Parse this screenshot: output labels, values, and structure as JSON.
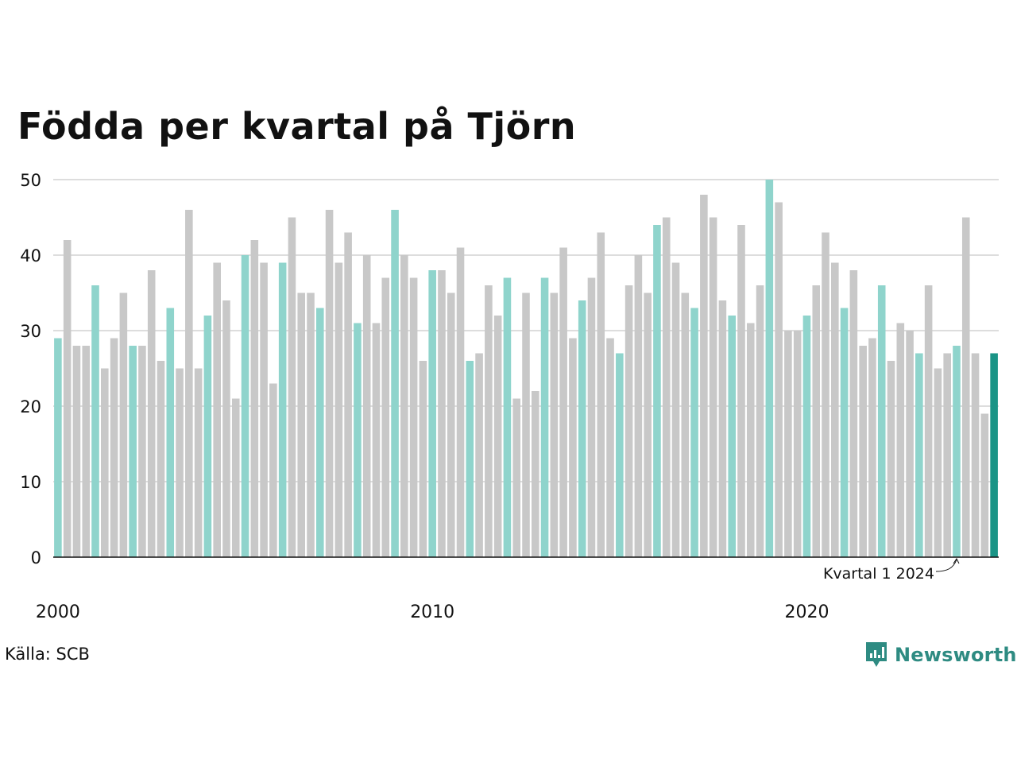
{
  "title": "Födda per kvartal på Tjörn",
  "source": "Källa: SCB",
  "brand": "Newsworthy",
  "colors": {
    "highlight": "#8fd4cc",
    "latest": "#1a9486",
    "other": "#c8c8c8",
    "grid": "#dddddd",
    "axis": "#111111",
    "brand": "#2e8b82"
  },
  "chart_data": {
    "type": "bar",
    "start_year": 2000,
    "ylim": [
      0,
      50
    ],
    "yticks": [
      0,
      10,
      20,
      30,
      40,
      50
    ],
    "xticks": [
      "2000",
      "2010",
      "2020"
    ],
    "grid": true,
    "annotation": "Kvartal 1 2024",
    "categories": [
      "2000 Q1",
      "2000 Q2",
      "2000 Q3",
      "2000 Q4",
      "2001 Q1",
      "2001 Q2",
      "2001 Q3",
      "2001 Q4",
      "2002 Q1",
      "2002 Q2",
      "2002 Q3",
      "2002 Q4",
      "2003 Q1",
      "2003 Q2",
      "2003 Q3",
      "2003 Q4",
      "2004 Q1",
      "2004 Q2",
      "2004 Q3",
      "2004 Q4",
      "2005 Q1",
      "2005 Q2",
      "2005 Q3",
      "2005 Q4",
      "2006 Q1",
      "2006 Q2",
      "2006 Q3",
      "2006 Q4",
      "2007 Q1",
      "2007 Q2",
      "2007 Q3",
      "2007 Q4",
      "2008 Q1",
      "2008 Q2",
      "2008 Q3",
      "2008 Q4",
      "2009 Q1",
      "2009 Q2",
      "2009 Q3",
      "2009 Q4",
      "2010 Q1",
      "2010 Q2",
      "2010 Q3",
      "2010 Q4",
      "2011 Q1",
      "2011 Q2",
      "2011 Q3",
      "2011 Q4",
      "2012 Q1",
      "2012 Q2",
      "2012 Q3",
      "2012 Q4",
      "2013 Q1",
      "2013 Q2",
      "2013 Q3",
      "2013 Q4",
      "2014 Q1",
      "2014 Q2",
      "2014 Q3",
      "2014 Q4",
      "2015 Q1",
      "2015 Q2",
      "2015 Q3",
      "2015 Q4",
      "2016 Q1",
      "2016 Q2",
      "2016 Q3",
      "2016 Q4",
      "2017 Q1",
      "2017 Q2",
      "2017 Q3",
      "2017 Q4",
      "2018 Q1",
      "2018 Q2",
      "2018 Q3",
      "2018 Q4",
      "2019 Q1",
      "2019 Q2",
      "2019 Q3",
      "2019 Q4",
      "2020 Q1",
      "2020 Q2",
      "2020 Q3",
      "2020 Q4",
      "2021 Q1",
      "2021 Q2",
      "2021 Q3",
      "2021 Q4",
      "2022 Q1",
      "2022 Q2",
      "2022 Q3",
      "2022 Q4",
      "2023 Q1",
      "2023 Q2",
      "2023 Q3",
      "2023 Q4",
      "2024 Q1",
      "2024 Q2",
      "2024 Q3",
      "2024 Q4",
      "2025 Q1"
    ],
    "values": [
      29,
      42,
      28,
      28,
      36,
      25,
      29,
      35,
      28,
      28,
      38,
      26,
      33,
      25,
      46,
      25,
      32,
      39,
      34,
      21,
      40,
      42,
      39,
      23,
      39,
      45,
      35,
      35,
      33,
      46,
      39,
      43,
      31,
      40,
      31,
      37,
      46,
      40,
      37,
      26,
      38,
      38,
      35,
      41,
      26,
      27,
      36,
      32,
      37,
      21,
      35,
      22,
      37,
      35,
      41,
      29,
      34,
      37,
      43,
      29,
      27,
      36,
      40,
      35,
      44,
      45,
      39,
      35,
      33,
      48,
      45,
      34,
      32,
      44,
      31,
      36,
      50,
      47,
      30,
      30,
      32,
      36,
      43,
      39,
      33,
      38,
      28,
      29,
      36,
      26,
      31,
      30,
      27,
      36,
      25,
      27,
      28,
      45,
      27,
      19,
      27
    ],
    "highlighted_quarter": "Q1",
    "annotated_category": "2024 Q1",
    "latest_category": "2025 Q1"
  }
}
